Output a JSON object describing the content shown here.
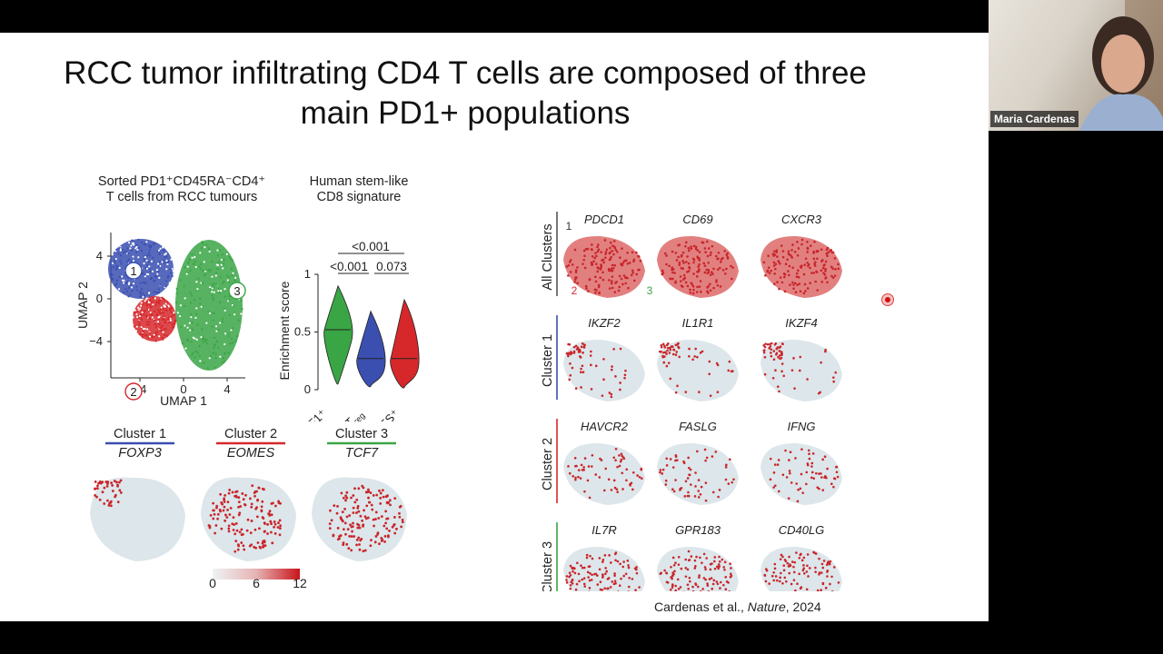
{
  "slide": {
    "title_line1": "RCC tumor infiltrating CD4 T cells are composed of three",
    "title_line2": "main PD1+ populations",
    "citation_prefix": "Cardenas et al., ",
    "citation_journal": "Nature",
    "citation_year": ", 2024"
  },
  "umap_panel": {
    "heading_line1": "Sorted PD1⁺CD45RA⁻CD4⁺",
    "heading_line2": "T cells from RCC tumours",
    "xlabel": "UMAP 1",
    "ylabel": "UMAP 2",
    "x_ticks": [
      "−4",
      "0",
      "4"
    ],
    "y_ticks": [
      "4",
      "0",
      "−4"
    ],
    "cluster_labels": [
      "1",
      "2",
      "3"
    ],
    "colors": {
      "cluster1": "#3a4fb0",
      "cluster2": "#d6282b",
      "cluster3": "#3aa545"
    }
  },
  "violin_panel": {
    "heading_line1": "Human stem-like",
    "heading_line2": "CD8 signature",
    "ylabel": "Enrichment score",
    "y_ticks": [
      "1",
      "0.5",
      "0"
    ],
    "pvalue_top": "<0.001",
    "pvalue_left": "<0.001",
    "pvalue_right": "0.073",
    "categories": [
      "TCF1⁺",
      "T",
      "EOMES⁺"
    ],
    "treg_sub": "reg",
    "medians": [
      0.52,
      0.27,
      0.27
    ]
  },
  "bottom_panels": {
    "clusters": [
      {
        "name": "Cluster 1",
        "gene": "FOXP3",
        "color": "#3a4fb0"
      },
      {
        "name": "Cluster 2",
        "gene": "EOMES",
        "color": "#d6282b"
      },
      {
        "name": "Cluster 3",
        "gene": "TCF7",
        "color": "#3aa545"
      }
    ],
    "colorbar_ticks": [
      "0",
      "6",
      "12"
    ]
  },
  "right_grid": {
    "rows": [
      {
        "label": "All Clusters",
        "genes": [
          "PDCD1",
          "CD69",
          "CXCR3"
        ],
        "color": "#555555",
        "num1": "1",
        "num2": "2",
        "num3": "3"
      },
      {
        "label": "Cluster 1",
        "genes": [
          "IKZF2",
          "IL1R1",
          "IKZF4"
        ],
        "color": "#3a4fb0"
      },
      {
        "label": "Cluster 2",
        "genes": [
          "HAVCR2",
          "FASLG",
          "IFNG"
        ],
        "color": "#d6282b"
      },
      {
        "label": "Cluster 3",
        "genes": [
          "IL7R",
          "GPR183",
          "CD40LG"
        ],
        "color": "#3aa545"
      }
    ]
  },
  "video": {
    "participant_name": "Maria Cardenas"
  }
}
